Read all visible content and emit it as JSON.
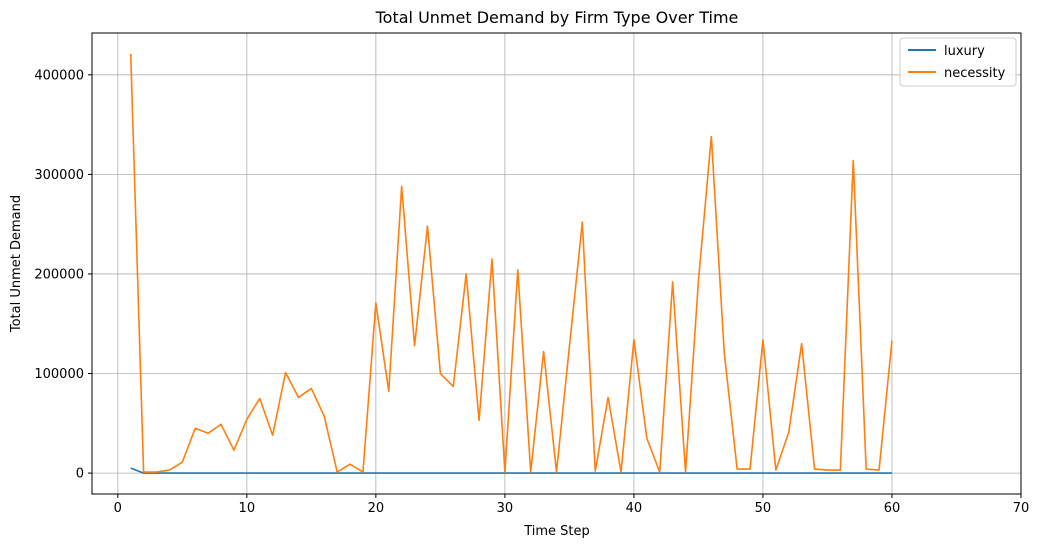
{
  "chart_data": {
    "type": "line",
    "title": "Total Unmet Demand by Firm Type Over Time",
    "xlabel": "Time Step",
    "ylabel": "Total Unmet Demand",
    "xlim": [
      -2,
      70
    ],
    "ylim": [
      -21000,
      442000
    ],
    "xticks": [
      0,
      10,
      20,
      30,
      40,
      50,
      60,
      70
    ],
    "xtick_labels": [
      "0",
      "10",
      "20",
      "30",
      "40",
      "50",
      "60",
      "70"
    ],
    "yticks": [
      0,
      100000,
      200000,
      300000,
      400000
    ],
    "ytick_labels": [
      "0",
      "100000",
      "200000",
      "300000",
      "400000"
    ],
    "grid": true,
    "legend_position": "top-right",
    "series": [
      {
        "name": "luxury",
        "color": "#1f77b4",
        "x": [
          1,
          2,
          3,
          4,
          5,
          6,
          7,
          8,
          9,
          10,
          11,
          12,
          13,
          14,
          15,
          16,
          17,
          18,
          19,
          20,
          21,
          22,
          23,
          24,
          25,
          26,
          27,
          28,
          29,
          30,
          31,
          32,
          33,
          34,
          35,
          36,
          37,
          38,
          39,
          40,
          41,
          42,
          43,
          44,
          45,
          46,
          47,
          48,
          49,
          50,
          51,
          52,
          53,
          54,
          55,
          56,
          57,
          58,
          59,
          60
        ],
        "y": [
          5000,
          0,
          0,
          0,
          0,
          0,
          0,
          0,
          0,
          0,
          0,
          0,
          0,
          0,
          0,
          0,
          0,
          0,
          0,
          0,
          0,
          0,
          0,
          0,
          0,
          0,
          0,
          0,
          0,
          0,
          0,
          0,
          0,
          0,
          0,
          0,
          0,
          0,
          0,
          0,
          0,
          0,
          0,
          0,
          0,
          0,
          0,
          0,
          0,
          0,
          0,
          0,
          0,
          0,
          0,
          0,
          0,
          0,
          0,
          0
        ]
      },
      {
        "name": "necessity",
        "color": "#ff7f0e",
        "x": [
          1,
          2,
          3,
          4,
          5,
          6,
          7,
          8,
          9,
          10,
          11,
          12,
          13,
          14,
          15,
          16,
          17,
          18,
          19,
          20,
          21,
          22,
          23,
          24,
          25,
          26,
          27,
          28,
          29,
          30,
          31,
          32,
          33,
          34,
          35,
          36,
          37,
          38,
          39,
          40,
          41,
          42,
          43,
          44,
          45,
          46,
          47,
          48,
          49,
          50,
          51,
          52,
          53,
          54,
          55,
          56,
          57,
          58,
          59,
          60
        ],
        "y": [
          421000,
          1000,
          1000,
          3000,
          11000,
          45000,
          40000,
          49000,
          23000,
          54000,
          75000,
          38000,
          101000,
          76000,
          85000,
          57000,
          1000,
          9000,
          1000,
          171000,
          82000,
          288000,
          128000,
          248000,
          100000,
          87000,
          200000,
          53000,
          215000,
          1000,
          204000,
          1000,
          122000,
          1000,
          127000,
          252000,
          2000,
          76000,
          1000,
          134000,
          35000,
          1000,
          192000,
          1000,
          193000,
          338000,
          121000,
          4000,
          4000,
          134000,
          3000,
          41000,
          130000,
          4000,
          3000,
          3000,
          314000,
          4000,
          3000,
          133000
        ]
      }
    ]
  }
}
